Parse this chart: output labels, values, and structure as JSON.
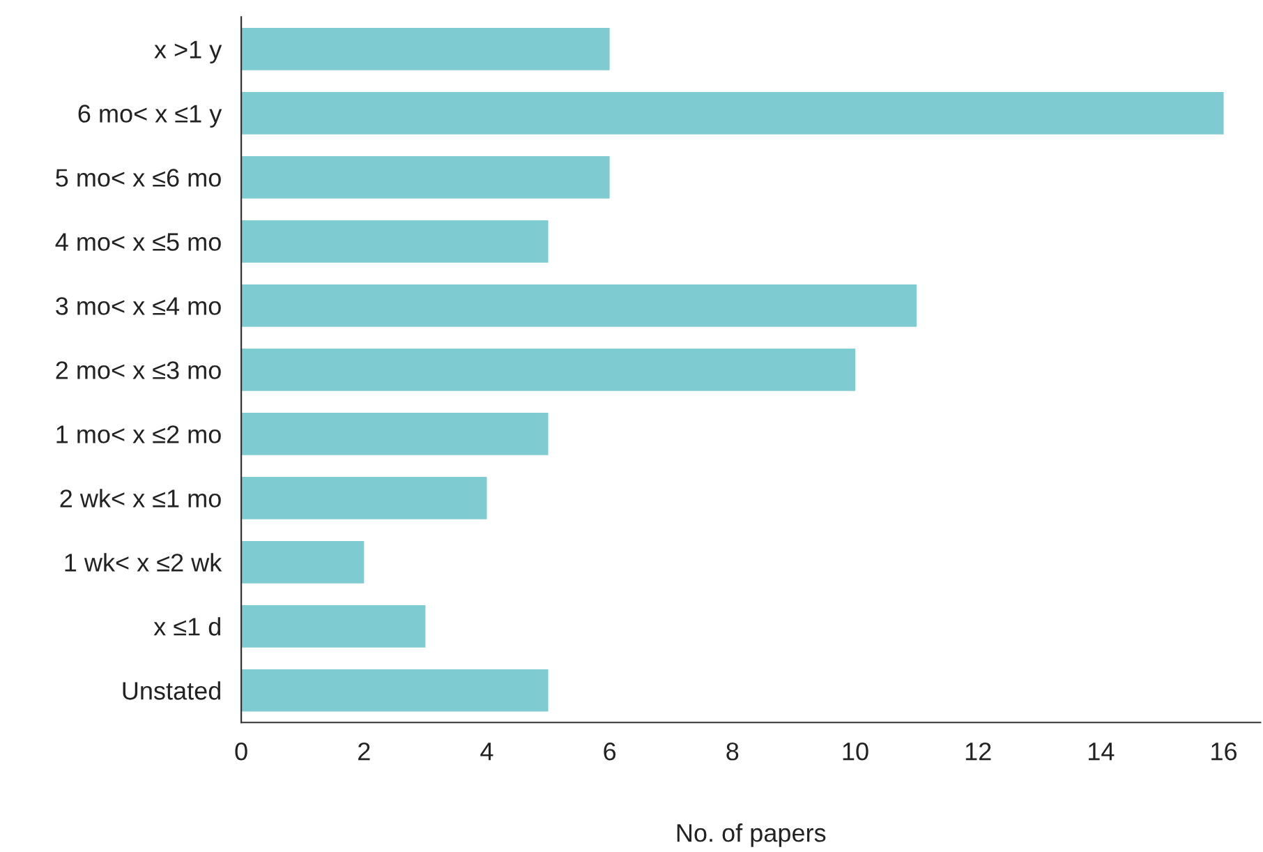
{
  "chart_data": {
    "type": "bar",
    "orientation": "horizontal",
    "xlabel": "No. of papers",
    "categories": [
      "x >1 y",
      "6 mo< x ≤1 y",
      "5 mo< x ≤6 mo",
      "4 mo< x ≤5 mo",
      "3 mo< x ≤4 mo",
      "2 mo< x ≤3 mo",
      "1 mo< x ≤2 mo",
      "2 wk< x ≤1 mo",
      "1 wk< x ≤2 wk",
      "x ≤1 d",
      "Unstated"
    ],
    "values": [
      6,
      16,
      6,
      5,
      11,
      10,
      5,
      4,
      2,
      3,
      5
    ],
    "color": "#7ecbd1",
    "xlim": [
      0,
      16.6
    ],
    "xticks": [
      0,
      2,
      4,
      6,
      8,
      10,
      12,
      14,
      16
    ],
    "grid": false,
    "legend": false
  }
}
